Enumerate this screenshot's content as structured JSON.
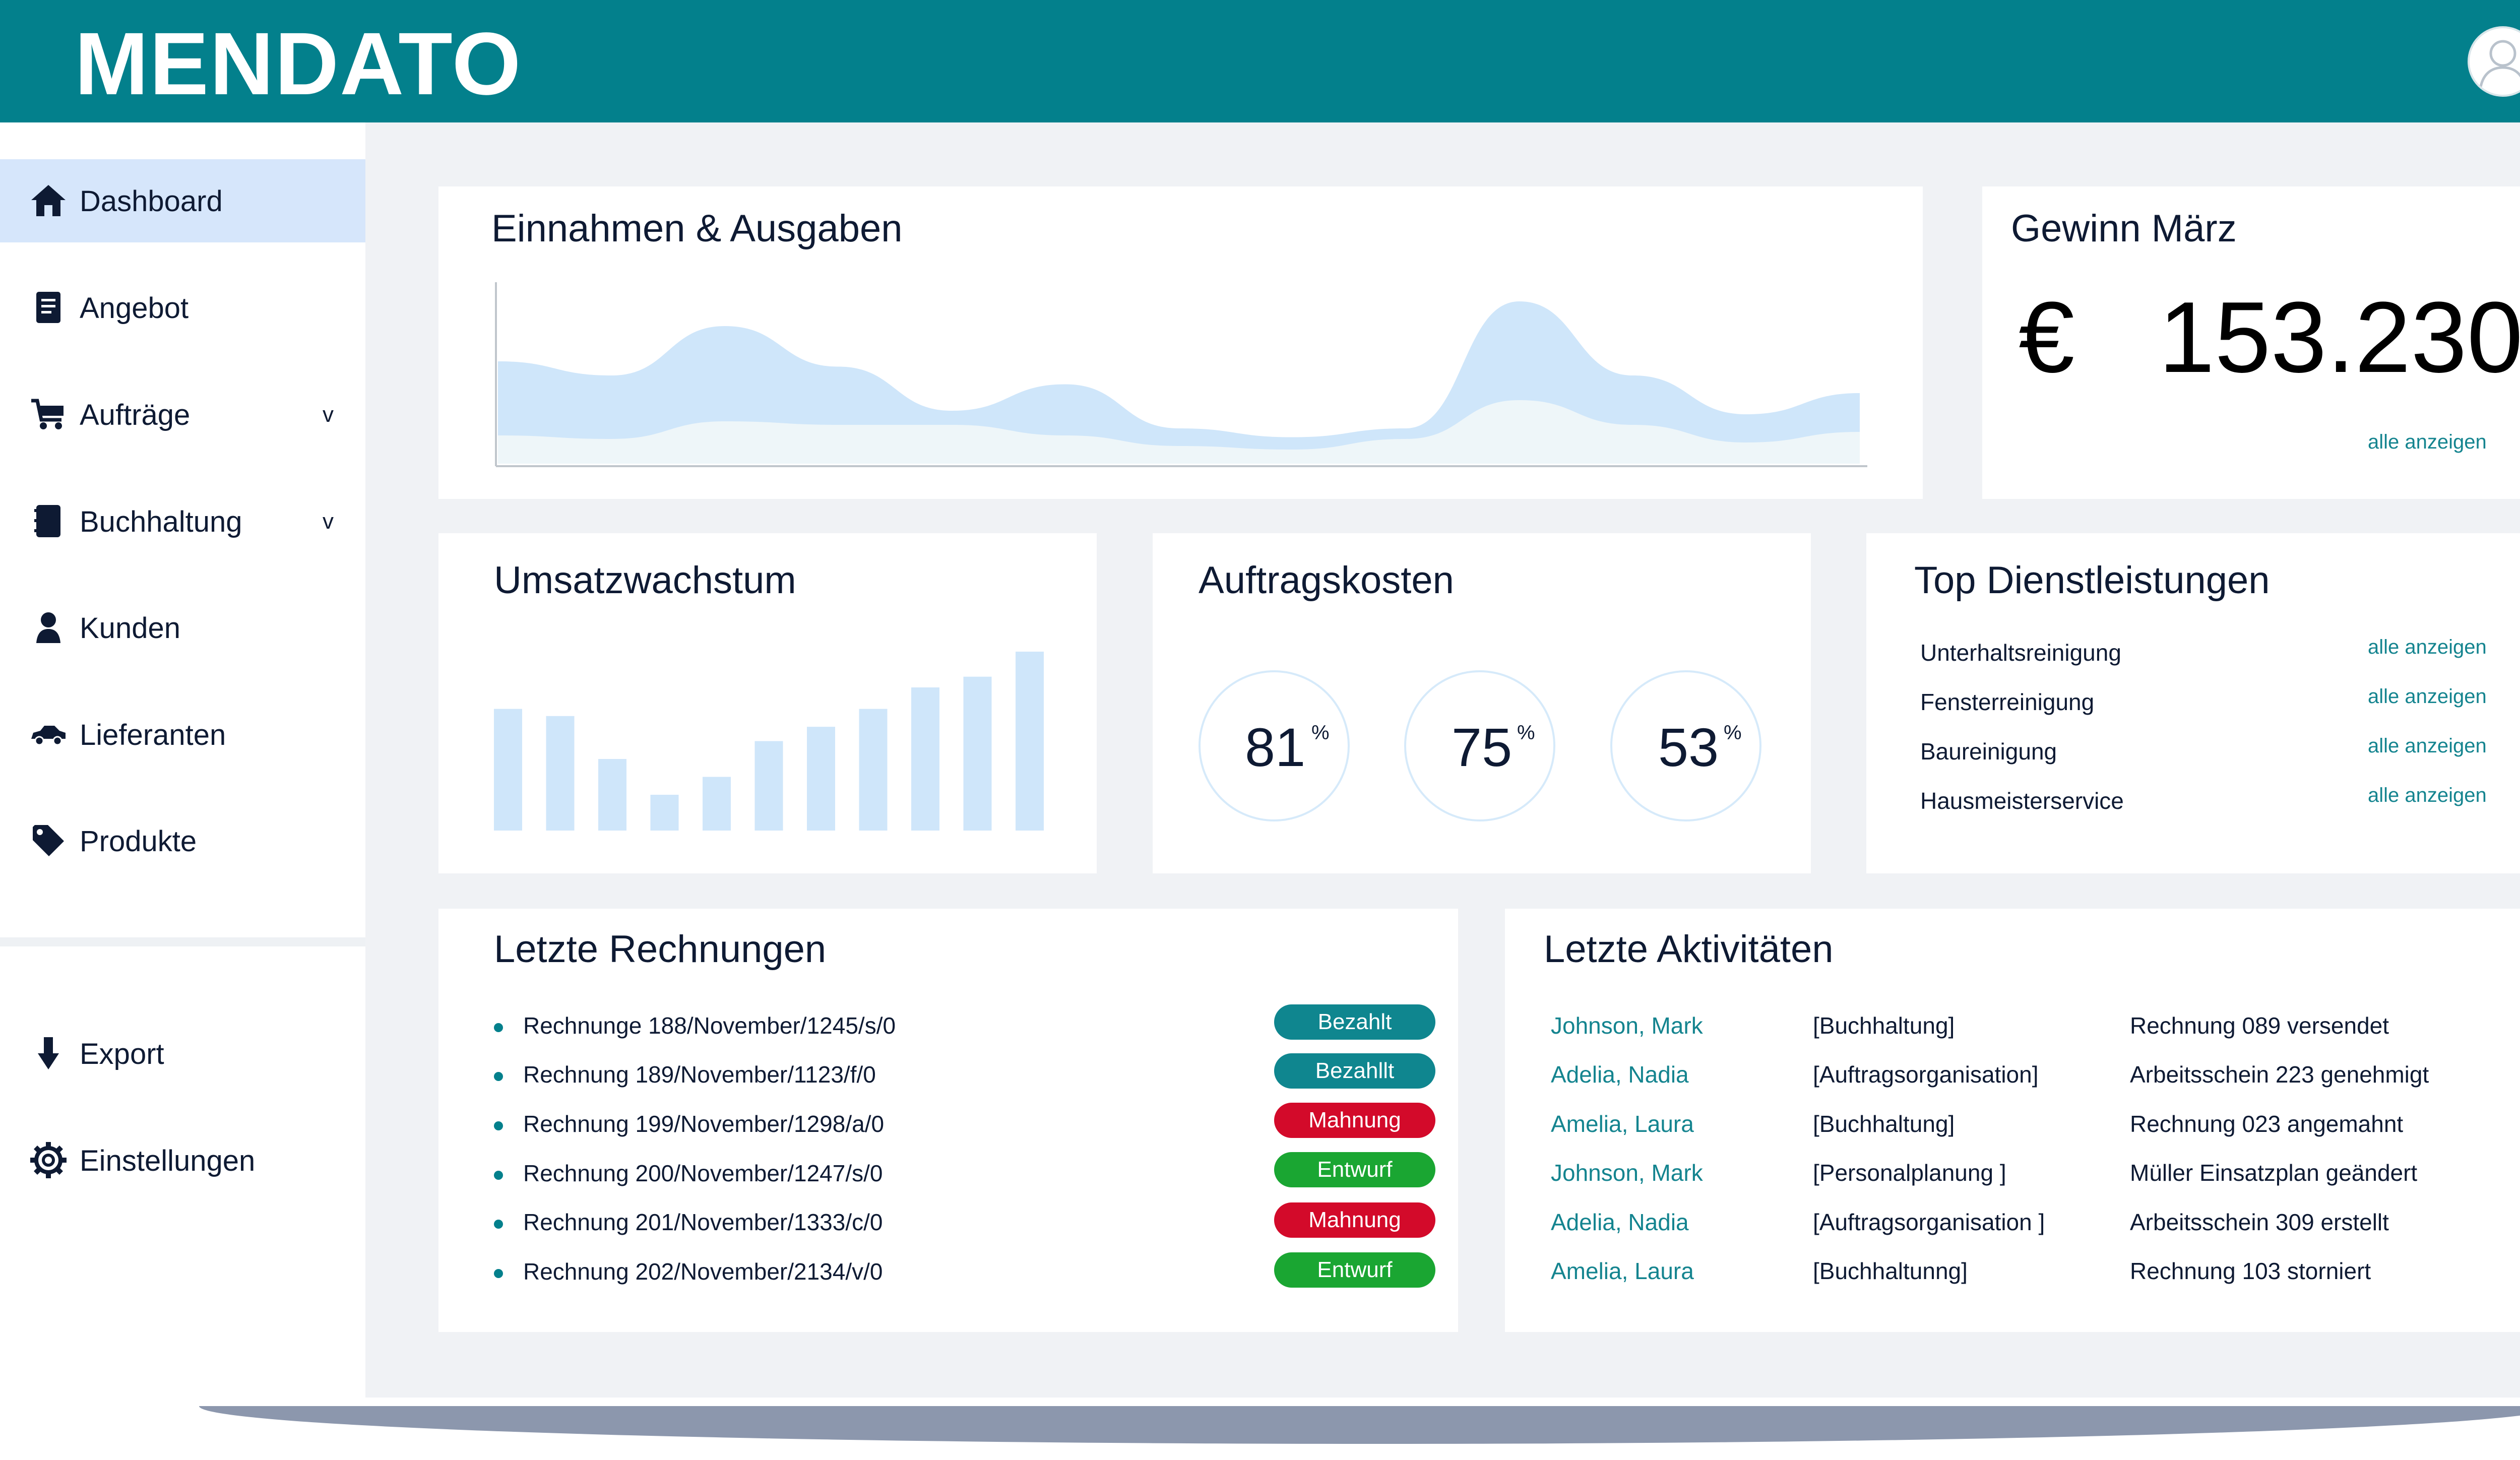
{
  "app": {
    "logo": "MENDATO"
  },
  "colors": {
    "brand": "#03808c",
    "active_nav": "#d6e6fb",
    "chart_fill": "#cfe6fa",
    "status_paid": "#0f868f",
    "status_reminder": "#d30a2a",
    "status_draft": "#1aa632"
  },
  "sidebar": {
    "items": [
      {
        "label": "Dashboard",
        "icon": "home-icon",
        "active": true
      },
      {
        "label": "Angebot",
        "icon": "document-icon"
      },
      {
        "label": "Aufträge",
        "icon": "cart-icon",
        "chevron": "v"
      },
      {
        "label": "Buchhaltung",
        "icon": "book-icon",
        "chevron": "v"
      },
      {
        "label": "Kunden",
        "icon": "person-icon"
      },
      {
        "label": "Lieferanten",
        "icon": "car-icon"
      },
      {
        "label": "Produkte",
        "icon": "tag-icon"
      }
    ],
    "bottom_items": [
      {
        "label": "Export",
        "icon": "download-arrow-icon"
      },
      {
        "label": "Einstellungen",
        "icon": "gear-icon"
      }
    ]
  },
  "cards": {
    "income": {
      "title": "Einnahmen & Ausgaben"
    },
    "profit": {
      "title": "Gewinn März",
      "value": "€   153.230",
      "link": "alle anzeigen"
    },
    "growth": {
      "title": "Umsatzwachstum"
    },
    "costs": {
      "title": "Auftragskosten",
      "rings": [
        {
          "value": "81",
          "unit": "%"
        },
        {
          "value": "75",
          "unit": "%"
        },
        {
          "value": "53",
          "unit": "%"
        }
      ]
    },
    "services": {
      "title": "Top Dienstleistungen",
      "items": [
        {
          "label": "Unterhaltsreinigung",
          "link": "alle anzeigen"
        },
        {
          "label": "Fensterreinigung",
          "link": "alle anzeigen"
        },
        {
          "label": "Baureinigung",
          "link": "alle anzeigen"
        },
        {
          "label": "Hausmeisterservice",
          "link": "alle anzeigen"
        }
      ]
    },
    "invoices": {
      "title": "Letzte Rechnungen",
      "rows": [
        {
          "text": "Rechnunge 188/November/1245/s/0",
          "status": "Bezahlt",
          "kind": "paid"
        },
        {
          "text": "Rechnung 189/November/1123/f/0",
          "status": "Bezahllt",
          "kind": "paid"
        },
        {
          "text": "Rechnung 199/November/1298/a/0",
          "status": "Mahnung",
          "kind": "reminder"
        },
        {
          "text": "Rechnung 200/November/1247/s/0",
          "status": "Entwurf",
          "kind": "draft"
        },
        {
          "text": "Rechnung 201/November/1333/c/0",
          "status": "Mahnung",
          "kind": "reminder"
        },
        {
          "text": "Rechnung 202/November/2134/v/0",
          "status": "Entwurf",
          "kind": "draft"
        }
      ]
    },
    "activities": {
      "title": "Letzte Aktivitäten",
      "rows": [
        {
          "name": "Johnson, Mark",
          "category": "[Buchhaltung]",
          "description": "Rechnung 089 versendet"
        },
        {
          "name": "Adelia, Nadia",
          "category": "[Auftragsorganisation]",
          "description": "Arbeitsschein 223 genehmigt"
        },
        {
          "name": "Amelia, Laura",
          "category": "[Buchhaltung]",
          "description": "Rechnung 023 angemahnt"
        },
        {
          "name": "Johnson, Mark",
          "category": "[Personalplanung ]",
          "description": "Müller Einsatzplan geändert"
        },
        {
          "name": "Adelia, Nadia",
          "category": "[Auftragsorganisation ]",
          "description": "Arbeitsschein 309 erstellt"
        },
        {
          "name": "Amelia, Laura",
          "category": "[Buchhaltunng]",
          "description": "Rechnung 103 storniert"
        }
      ]
    }
  },
  "chart_data": [
    {
      "type": "area",
      "title": "Einnahmen & Ausgaben",
      "x": [
        0,
        1,
        2,
        3,
        4,
        5,
        6,
        7,
        8,
        9,
        10,
        11,
        12
      ],
      "series": [
        {
          "values": [
            58,
            50,
            78,
            55,
            30,
            45,
            20,
            15,
            20,
            92,
            50,
            28,
            40
          ]
        },
        {
          "values": [
            16,
            14,
            24,
            22,
            22,
            16,
            10,
            8,
            14,
            36,
            22,
            12,
            18
          ]
        }
      ],
      "ylim": [
        0,
        100
      ],
      "grid": false
    },
    {
      "type": "bar",
      "title": "Umsatzwachstum",
      "categories": [
        "1",
        "2",
        "3",
        "4",
        "5",
        "6",
        "7",
        "8",
        "9",
        "10",
        "11"
      ],
      "values": [
        68,
        64,
        40,
        20,
        30,
        50,
        58,
        68,
        80,
        86,
        100
      ],
      "ylim": [
        0,
        100
      ]
    }
  ]
}
